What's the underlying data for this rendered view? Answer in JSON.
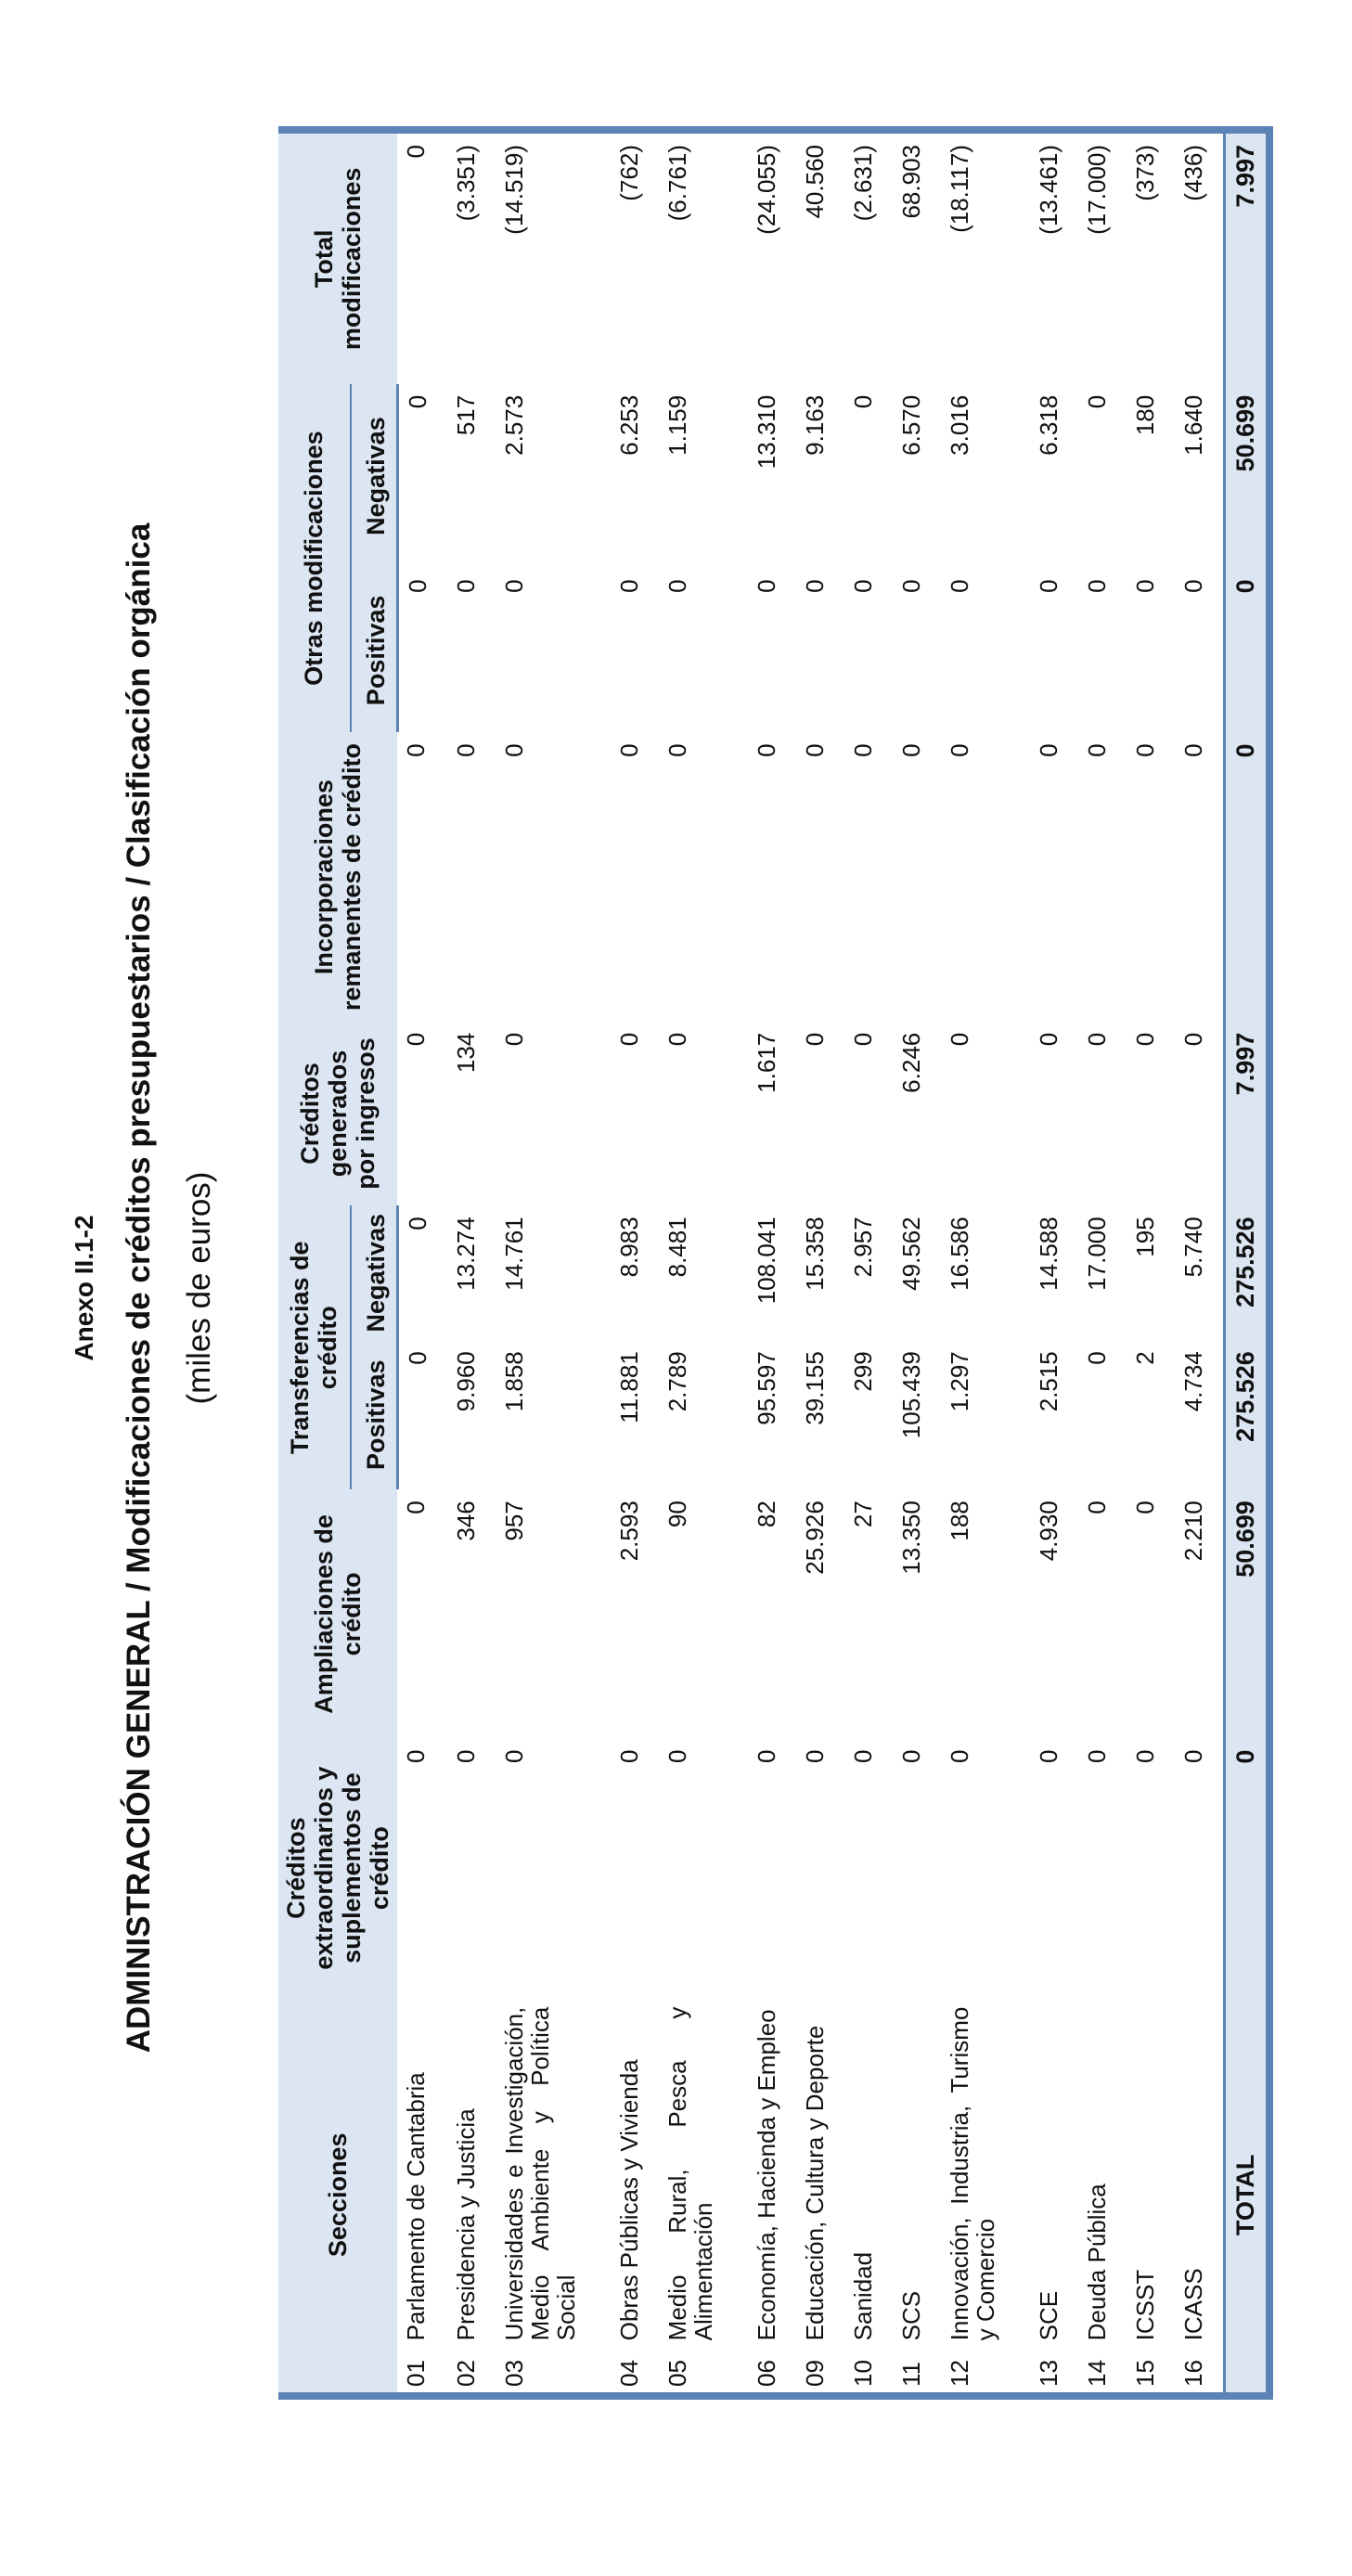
{
  "annex": "Anexo II.1-2",
  "title": "ADMINISTRACIÓN GENERAL  /  Modificaciones de créditos presupuestarios  /  Clasificación orgánica",
  "subtitle": "(miles de euros)",
  "headers": {
    "secciones": "Secciones",
    "extraordinarios": "Créditos extraordinarios y suplementos de crédito",
    "ampliaciones": "Ampliaciones de crédito",
    "transferencias": "Transferencias de crédito",
    "generados": "Créditos generados por ingresos",
    "incorporaciones": "Incorporaciones remanentes de crédito",
    "otras": "Otras modificaciones",
    "total": "Total modificaciones",
    "positivas": "Positivas",
    "negativas": "Negativas"
  },
  "rows": [
    {
      "code": "01",
      "name": "Parlamento de Cantabria",
      "ext": "0",
      "amp": "0",
      "tp": "0",
      "tn": "0",
      "gen": "0",
      "inc": "0",
      "op": "0",
      "on": "0",
      "tot": "0"
    },
    {
      "code": "02",
      "name": "Presidencia y Justicia",
      "ext": "0",
      "amp": "346",
      "tp": "9.960",
      "tn": "13.274",
      "gen": "134",
      "inc": "0",
      "op": "0",
      "on": "517",
      "tot": "(3.351)"
    },
    {
      "code": "03",
      "name": "Universidades e Investigación, Medio Ambiente y Política Social",
      "ext": "0",
      "amp": "957",
      "tp": "1.858",
      "tn": "14.761",
      "gen": "0",
      "inc": "0",
      "op": "0",
      "on": "2.573",
      "tot": "(14.519)"
    },
    {
      "code": "04",
      "name": "Obras Públicas y Vivienda",
      "ext": "0",
      "amp": "2.593",
      "tp": "11.881",
      "tn": "8.983",
      "gen": "0",
      "inc": "0",
      "op": "0",
      "on": "6.253",
      "tot": "(762)"
    },
    {
      "code": "05",
      "name": "Medio Rural, Pesca y Alimentación",
      "ext": "0",
      "amp": "90",
      "tp": "2.789",
      "tn": "8.481",
      "gen": "0",
      "inc": "0",
      "op": "0",
      "on": "1.159",
      "tot": "(6.761)"
    },
    {
      "code": "06",
      "name": "Economía, Hacienda y Empleo",
      "ext": "0",
      "amp": "82",
      "tp": "95.597",
      "tn": "108.041",
      "gen": "1.617",
      "inc": "0",
      "op": "0",
      "on": "13.310",
      "tot": "(24.055)"
    },
    {
      "code": "09",
      "name": "Educación, Cultura y Deporte",
      "ext": "0",
      "amp": "25.926",
      "tp": "39.155",
      "tn": "15.358",
      "gen": "0",
      "inc": "0",
      "op": "0",
      "on": "9.163",
      "tot": "40.560"
    },
    {
      "code": "10",
      "name": "Sanidad",
      "ext": "0",
      "amp": "27",
      "tp": "299",
      "tn": "2.957",
      "gen": "0",
      "inc": "0",
      "op": "0",
      "on": "0",
      "tot": "(2.631)"
    },
    {
      "code": "11",
      "name": "SCS",
      "ext": "0",
      "amp": "13.350",
      "tp": "105.439",
      "tn": "49.562",
      "gen": "6.246",
      "inc": "0",
      "op": "0",
      "on": "6.570",
      "tot": "68.903"
    },
    {
      "code": "12",
      "name": "Innovación, Industria, Turismo y Comercio",
      "ext": "0",
      "amp": "188",
      "tp": "1.297",
      "tn": "16.586",
      "gen": "0",
      "inc": "0",
      "op": "0",
      "on": "3.016",
      "tot": "(18.117)"
    },
    {
      "code": "13",
      "name": "SCE",
      "ext": "0",
      "amp": "4.930",
      "tp": "2.515",
      "tn": "14.588",
      "gen": "0",
      "inc": "0",
      "op": "0",
      "on": "6.318",
      "tot": "(13.461)"
    },
    {
      "code": "14",
      "name": "Deuda Pública",
      "ext": "0",
      "amp": "0",
      "tp": "0",
      "tn": "17.000",
      "gen": "0",
      "inc": "0",
      "op": "0",
      "on": "0",
      "tot": "(17.000)"
    },
    {
      "code": "15",
      "name": "ICSST",
      "ext": "0",
      "amp": "0",
      "tp": "2",
      "tn": "195",
      "gen": "0",
      "inc": "0",
      "op": "0",
      "on": "180",
      "tot": "(373)"
    },
    {
      "code": "16",
      "name": "ICASS",
      "ext": "0",
      "amp": "2.210",
      "tp": "4.734",
      "tn": "5.740",
      "gen": "0",
      "inc": "0",
      "op": "0",
      "on": "1.640",
      "tot": "(436)"
    }
  ],
  "total": {
    "label": "TOTAL",
    "ext": "0",
    "amp": "50.699",
    "tp": "275.526",
    "tn": "275.526",
    "gen": "7.997",
    "inc": "0",
    "op": "0",
    "on": "50.699",
    "tot": "7.997"
  },
  "colors": {
    "header_bg": "#dce6f2",
    "border": "#5b83b5"
  }
}
